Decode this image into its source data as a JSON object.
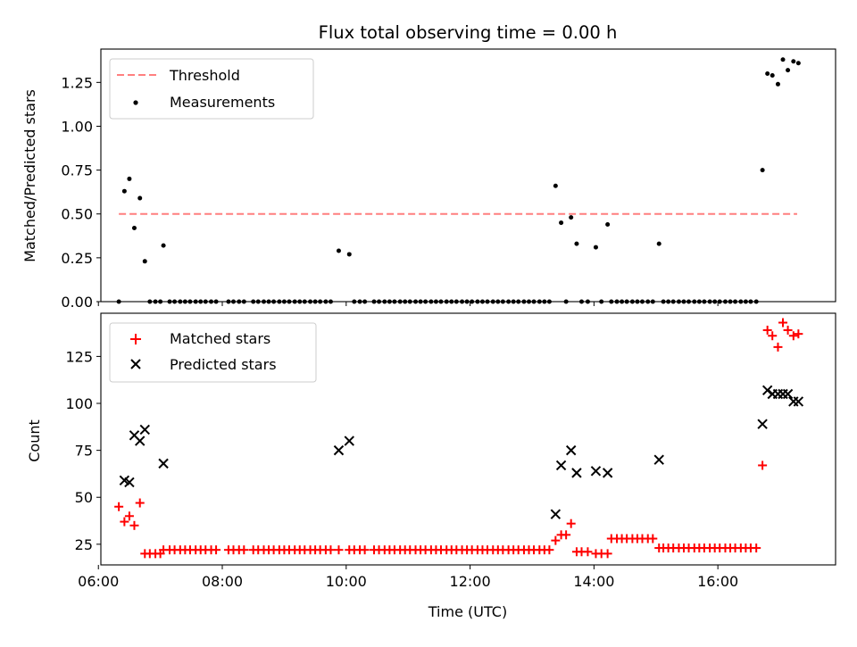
{
  "chart_data": [
    {
      "type": "scatter",
      "title": "Flux total observing time = 0.00 h",
      "xlabel": "",
      "ylabel": "Matched/Predicted stars",
      "xlim": [
        6.04,
        17.9
      ],
      "ylim": [
        0.0,
        1.44
      ],
      "yticks": [
        0.0,
        0.25,
        0.5,
        0.75,
        1.0,
        1.25
      ],
      "ytick_labels": [
        "0.00",
        "0.25",
        "0.50",
        "0.75",
        "1.00",
        "1.25"
      ],
      "xticks": [
        6,
        8,
        10,
        12,
        14,
        16
      ],
      "legend_position": "top-left",
      "series": [
        {
          "name": "Threshold",
          "kind": "line",
          "style": "dashed",
          "color": "#ff7f7f",
          "x": [
            6.33,
            17.28
          ],
          "y": [
            0.5,
            0.5
          ]
        },
        {
          "name": "Measurements",
          "kind": "scatter",
          "marker": "dot",
          "color": "#000000",
          "x": [
            6.33,
            6.42,
            6.5,
            6.58,
            6.67,
            6.75,
            6.83,
            6.92,
            7.0,
            7.05,
            7.15,
            7.23,
            7.32,
            7.4,
            7.48,
            7.57,
            7.65,
            7.73,
            7.82,
            7.9,
            8.1,
            8.18,
            8.27,
            8.35,
            8.5,
            8.58,
            8.67,
            8.75,
            8.83,
            8.92,
            9.0,
            9.08,
            9.17,
            9.25,
            9.33,
            9.42,
            9.5,
            9.58,
            9.67,
            9.75,
            9.88,
            10.05,
            10.13,
            10.22,
            10.3,
            10.45,
            10.53,
            10.62,
            10.7,
            10.78,
            10.87,
            10.95,
            11.03,
            11.12,
            11.2,
            11.28,
            11.37,
            11.45,
            11.53,
            11.62,
            11.7,
            11.78,
            11.87,
            11.95,
            12.03,
            12.12,
            12.2,
            12.28,
            12.37,
            12.45,
            12.53,
            12.62,
            12.7,
            12.78,
            12.87,
            12.95,
            13.03,
            13.12,
            13.2,
            13.28,
            13.38,
            13.47,
            13.55,
            13.63,
            13.72,
            13.8,
            13.9,
            14.03,
            14.12,
            14.22,
            14.28,
            14.37,
            14.45,
            14.53,
            14.62,
            14.7,
            14.78,
            14.87,
            14.95,
            15.05,
            15.12,
            15.2,
            15.28,
            15.37,
            15.45,
            15.53,
            15.62,
            15.7,
            15.78,
            15.87,
            15.95,
            16.03,
            16.12,
            16.2,
            16.28,
            16.37,
            16.45,
            16.53,
            16.62,
            16.72,
            16.8,
            16.88,
            16.97,
            17.05,
            17.13,
            17.22,
            17.3
          ],
          "y": [
            0.0,
            0.63,
            0.7,
            0.42,
            0.59,
            0.23,
            0.0,
            0.0,
            0.0,
            0.32,
            0.0,
            0.0,
            0.0,
            0.0,
            0.0,
            0.0,
            0.0,
            0.0,
            0.0,
            0.0,
            0.0,
            0.0,
            0.0,
            0.0,
            0.0,
            0.0,
            0.0,
            0.0,
            0.0,
            0.0,
            0.0,
            0.0,
            0.0,
            0.0,
            0.0,
            0.0,
            0.0,
            0.0,
            0.0,
            0.0,
            0.29,
            0.27,
            0.0,
            0.0,
            0.0,
            0.0,
            0.0,
            0.0,
            0.0,
            0.0,
            0.0,
            0.0,
            0.0,
            0.0,
            0.0,
            0.0,
            0.0,
            0.0,
            0.0,
            0.0,
            0.0,
            0.0,
            0.0,
            0.0,
            0.0,
            0.0,
            0.0,
            0.0,
            0.0,
            0.0,
            0.0,
            0.0,
            0.0,
            0.0,
            0.0,
            0.0,
            0.0,
            0.0,
            0.0,
            0.0,
            0.66,
            0.45,
            0.0,
            0.48,
            0.33,
            0.0,
            0.0,
            0.31,
            0.0,
            0.44,
            0.0,
            0.0,
            0.0,
            0.0,
            0.0,
            0.0,
            0.0,
            0.0,
            0.0,
            0.33,
            0.0,
            0.0,
            0.0,
            0.0,
            0.0,
            0.0,
            0.0,
            0.0,
            0.0,
            0.0,
            0.0,
            0.0,
            0.0,
            0.0,
            0.0,
            0.0,
            0.0,
            0.0,
            0.0,
            0.75,
            1.3,
            1.29,
            1.24,
            1.38,
            1.32,
            1.37,
            1.36
          ]
        }
      ]
    },
    {
      "type": "scatter",
      "title": "",
      "xlabel": "Time (UTC)",
      "ylabel": "Count",
      "xlim": [
        6.04,
        17.9
      ],
      "ylim": [
        14,
        148
      ],
      "yticks": [
        25,
        50,
        75,
        100,
        125
      ],
      "ytick_labels": [
        "25",
        "50",
        "75",
        "100",
        "125"
      ],
      "xticks": [
        6,
        8,
        10,
        12,
        14,
        16
      ],
      "xtick_labels": [
        "06:00",
        "08:00",
        "10:00",
        "12:00",
        "14:00",
        "16:00"
      ],
      "legend_position": "top-left",
      "series": [
        {
          "name": "Matched stars",
          "kind": "scatter",
          "marker": "plus",
          "color": "#ff0000",
          "x": [
            6.33,
            6.42,
            6.5,
            6.58,
            6.67,
            6.75,
            6.83,
            6.92,
            7.0,
            7.05,
            7.15,
            7.23,
            7.32,
            7.4,
            7.48,
            7.57,
            7.65,
            7.73,
            7.82,
            7.9,
            8.1,
            8.18,
            8.27,
            8.35,
            8.5,
            8.58,
            8.67,
            8.75,
            8.83,
            8.92,
            9.0,
            9.08,
            9.17,
            9.25,
            9.33,
            9.42,
            9.5,
            9.58,
            9.67,
            9.75,
            9.88,
            10.05,
            10.13,
            10.22,
            10.3,
            10.45,
            10.53,
            10.62,
            10.7,
            10.78,
            10.87,
            10.95,
            11.03,
            11.12,
            11.2,
            11.28,
            11.37,
            11.45,
            11.53,
            11.62,
            11.7,
            11.78,
            11.87,
            11.95,
            12.03,
            12.12,
            12.2,
            12.28,
            12.37,
            12.45,
            12.53,
            12.62,
            12.7,
            12.78,
            12.87,
            12.95,
            13.03,
            13.12,
            13.2,
            13.28,
            13.38,
            13.47,
            13.55,
            13.63,
            13.72,
            13.8,
            13.9,
            14.03,
            14.12,
            14.22,
            14.28,
            14.37,
            14.45,
            14.53,
            14.62,
            14.7,
            14.78,
            14.87,
            14.95,
            15.05,
            15.12,
            15.2,
            15.28,
            15.37,
            15.45,
            15.53,
            15.62,
            15.7,
            15.78,
            15.87,
            15.95,
            16.03,
            16.12,
            16.2,
            16.28,
            16.37,
            16.45,
            16.53,
            16.62,
            16.72,
            16.8,
            16.88,
            16.97,
            17.05,
            17.13,
            17.22,
            17.3
          ],
          "y": [
            45,
            37,
            40,
            35,
            47,
            20,
            20,
            20,
            20,
            22,
            22,
            22,
            22,
            22,
            22,
            22,
            22,
            22,
            22,
            22,
            22,
            22,
            22,
            22,
            22,
            22,
            22,
            22,
            22,
            22,
            22,
            22,
            22,
            22,
            22,
            22,
            22,
            22,
            22,
            22,
            22,
            22,
            22,
            22,
            22,
            22,
            22,
            22,
            22,
            22,
            22,
            22,
            22,
            22,
            22,
            22,
            22,
            22,
            22,
            22,
            22,
            22,
            22,
            22,
            22,
            22,
            22,
            22,
            22,
            22,
            22,
            22,
            22,
            22,
            22,
            22,
            22,
            22,
            22,
            22,
            27,
            30,
            30,
            36,
            21,
            21,
            21,
            20,
            20,
            20,
            28,
            28,
            28,
            28,
            28,
            28,
            28,
            28,
            28,
            23,
            23,
            23,
            23,
            23,
            23,
            23,
            23,
            23,
            23,
            23,
            23,
            23,
            23,
            23,
            23,
            23,
            23,
            23,
            23,
            67,
            139,
            136,
            130,
            143,
            139,
            136,
            137
          ]
        },
        {
          "name": "Predicted stars",
          "kind": "scatter",
          "marker": "x",
          "color": "#000000",
          "x": [
            6.42,
            6.5,
            6.58,
            6.67,
            6.75,
            7.05,
            9.88,
            10.05,
            13.38,
            13.47,
            13.63,
            13.72,
            14.03,
            14.22,
            15.05,
            16.72,
            16.8,
            16.88,
            16.97,
            17.05,
            17.13,
            17.22,
            17.3
          ],
          "y": [
            59,
            58,
            83,
            80,
            86,
            68,
            75,
            80,
            41,
            67,
            75,
            63,
            64,
            63,
            70,
            89,
            107,
            105,
            105,
            105,
            105,
            101,
            101
          ]
        }
      ]
    }
  ]
}
